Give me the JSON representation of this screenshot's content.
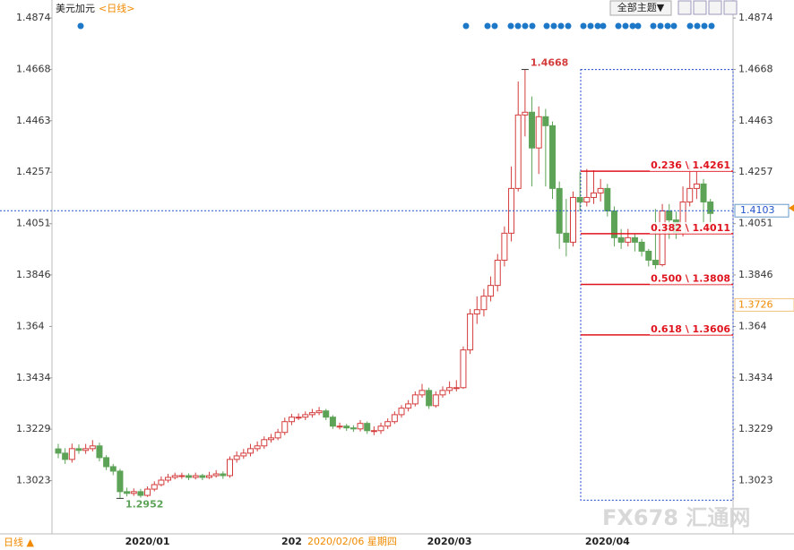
{
  "chart_data": {
    "type": "candlestick",
    "title": "美元加元",
    "period": "<日线>",
    "menu": "全部主题▼",
    "period_switch": "日线 ▲",
    "watermark": "FX678 汇通网",
    "crosshair_date": "2020/02/06 星期四",
    "up_color": "#d43c3c",
    "down_color": "#5da357",
    "ylim": [
      1.281,
      1.4946
    ],
    "yticks": [
      1.3023,
      1.3229,
      1.3434,
      1.364,
      1.3846,
      1.4051,
      1.4257,
      1.4463,
      1.4668,
      1.4874
    ],
    "categories": [
      null,
      null,
      null,
      null,
      null,
      null,
      null,
      null,
      null,
      null,
      null,
      null,
      null,
      "2020/01",
      null,
      null,
      null,
      null,
      null,
      null,
      null,
      null,
      null,
      null,
      null,
      null,
      null,
      null,
      null,
      null,
      null,
      null,
      null,
      null,
      "202",
      null,
      null,
      null,
      null,
      null,
      null,
      null,
      null,
      null,
      null,
      null,
      null,
      null,
      null,
      null,
      null,
      null,
      null,
      null,
      null,
      null,
      null,
      "2020/03",
      null,
      null,
      null,
      null,
      null,
      null,
      null,
      null,
      null,
      null,
      null,
      null,
      null,
      null,
      null,
      null,
      null,
      null,
      null,
      null,
      null,
      null,
      "2020/04",
      null,
      null,
      null,
      null,
      null,
      null,
      null,
      null,
      null,
      null,
      null,
      null,
      null,
      null,
      null
    ],
    "open": [
      1.315,
      1.3133,
      1.3108,
      1.3151,
      1.3144,
      1.3151,
      1.3162,
      1.3115,
      1.3079,
      1.3061,
      1.2979,
      1.2972,
      1.2979,
      1.2964,
      1.2989,
      1.3007,
      1.3025,
      1.3036,
      1.3043,
      1.3043,
      1.3036,
      1.3043,
      1.3036,
      1.3043,
      1.305,
      1.3043,
      1.3108,
      1.3122,
      1.3133,
      1.3151,
      1.3162,
      1.3187,
      1.3194,
      1.3216,
      1.3259,
      1.3277,
      1.3277,
      1.3287,
      1.3295,
      1.3302,
      1.3277,
      1.3241,
      1.3241,
      1.3234,
      1.323,
      1.3252,
      1.3223,
      1.3223,
      1.3241,
      1.3259,
      1.3287,
      1.3313,
      1.333,
      1.3366,
      1.3384,
      1.3323,
      1.3366,
      1.3384,
      1.3395,
      1.3395,
      1.3546,
      1.369,
      1.3707,
      1.3761,
      1.3804,
      1.3905,
      1.4013,
      1.4192,
      1.4486,
      1.4497,
      1.4354,
      1.4479,
      1.4443,
      1.4192,
      1.4013,
      1.3977,
      1.4156,
      1.4138,
      1.4156,
      1.4174,
      1.4192,
      1.4102,
      1.3995,
      1.3977,
      1.3995,
      1.3977,
      1.3941,
      1.3905,
      1.3887,
      1.4102,
      1.4066,
      1.4013,
      1.4138,
      1.4192,
      1.421,
      1.4138
    ],
    "high": [
      1.317,
      1.3153,
      1.3171,
      1.3168,
      1.317,
      1.3185,
      1.3175,
      1.3125,
      1.309,
      1.307,
      1.2995,
      1.2992,
      1.299,
      1.3,
      1.302,
      1.304,
      1.305,
      1.3055,
      1.3055,
      1.3052,
      1.3055,
      1.305,
      1.3058,
      1.3065,
      1.306,
      1.312,
      1.314,
      1.315,
      1.317,
      1.318,
      1.32,
      1.321,
      1.323,
      1.3275,
      1.329,
      1.3292,
      1.33,
      1.331,
      1.3318,
      1.331,
      1.3285,
      1.3255,
      1.325,
      1.3245,
      1.3265,
      1.326,
      1.324,
      1.3255,
      1.3272,
      1.33,
      1.3325,
      1.3345,
      1.338,
      1.341,
      1.3395,
      1.338,
      1.34,
      1.342,
      1.3425,
      1.356,
      1.371,
      1.376,
      1.379,
      1.384,
      1.393,
      1.404,
      1.428,
      1.462,
      1.4668,
      1.456,
      1.452,
      1.451,
      1.446,
      1.422,
      1.415,
      1.418,
      1.426,
      1.427,
      1.4265,
      1.423,
      1.421,
      1.412,
      1.403,
      1.403,
      1.401,
      1.399,
      1.395,
      1.411,
      1.413,
      1.413,
      1.41,
      1.42,
      1.429,
      1.426,
      1.423,
      1.415
    ],
    "low": [
      1.3113,
      1.309,
      1.3095,
      1.313,
      1.313,
      1.314,
      1.31,
      1.3065,
      1.3045,
      1.2952,
      1.296,
      1.2962,
      1.2955,
      1.2958,
      1.298,
      1.3,
      1.3015,
      1.3028,
      1.303,
      1.3025,
      1.3028,
      1.3025,
      1.303,
      1.3035,
      1.303,
      1.3035,
      1.3095,
      1.311,
      1.312,
      1.314,
      1.315,
      1.3175,
      1.3185,
      1.3205,
      1.3245,
      1.3265,
      1.3265,
      1.3275,
      1.3285,
      1.3265,
      1.323,
      1.3228,
      1.3222,
      1.3218,
      1.322,
      1.321,
      1.3205,
      1.321,
      1.323,
      1.325,
      1.3275,
      1.33,
      1.332,
      1.3355,
      1.331,
      1.3315,
      1.3355,
      1.337,
      1.338,
      1.339,
      1.353,
      1.365,
      1.368,
      1.374,
      1.378,
      1.388,
      1.398,
      1.418,
      1.44,
      1.42,
      1.425,
      1.42,
      1.415,
      1.395,
      1.392,
      1.396,
      1.41,
      1.412,
      1.413,
      1.414,
      1.408,
      1.396,
      1.395,
      1.396,
      1.394,
      1.392,
      1.388,
      1.387,
      1.388,
      1.399,
      1.399,
      1.4,
      1.412,
      1.415,
      1.405,
      1.403
    ],
    "close": [
      1.3133,
      1.3108,
      1.3151,
      1.3144,
      1.3151,
      1.3162,
      1.3115,
      1.3079,
      1.3061,
      1.2979,
      1.2972,
      1.2979,
      1.2964,
      1.2989,
      1.3007,
      1.3025,
      1.3036,
      1.3043,
      1.3043,
      1.3036,
      1.3043,
      1.3036,
      1.3043,
      1.305,
      1.3043,
      1.3108,
      1.3122,
      1.3133,
      1.3151,
      1.3162,
      1.3187,
      1.3194,
      1.3216,
      1.3259,
      1.3277,
      1.3277,
      1.3287,
      1.3295,
      1.3302,
      1.3277,
      1.3241,
      1.3241,
      1.3234,
      1.323,
      1.3252,
      1.3223,
      1.3223,
      1.3241,
      1.3259,
      1.3287,
      1.3313,
      1.333,
      1.3366,
      1.3384,
      1.3323,
      1.3366,
      1.3384,
      1.3395,
      1.3395,
      1.3546,
      1.369,
      1.3707,
      1.3761,
      1.3804,
      1.3905,
      1.4013,
      1.4192,
      1.4486,
      1.4497,
      1.4354,
      1.4479,
      1.4443,
      1.4192,
      1.4013,
      1.3977,
      1.4156,
      1.4138,
      1.4156,
      1.4174,
      1.4192,
      1.4102,
      1.3995,
      1.3977,
      1.3995,
      1.3977,
      1.3941,
      1.3905,
      1.3887,
      1.4102,
      1.4066,
      1.4013,
      1.4138,
      1.4192,
      1.421,
      1.4138,
      1.4092
    ],
    "period_high": 1.4668,
    "period_low": 1.2952,
    "last_price": 1.4103,
    "crosshair_price": 1.3726,
    "fibonacci": {
      "color": "#e0141e",
      "values": [
        1.4261,
        1.4011,
        1.3808,
        1.3606
      ],
      "value_labels": [
        "0.236 \\ 1.4261",
        "0.382 \\ 1.4011",
        "0.500 \\ 1.3808",
        "0.618 \\ 1.3606"
      ]
    }
  }
}
